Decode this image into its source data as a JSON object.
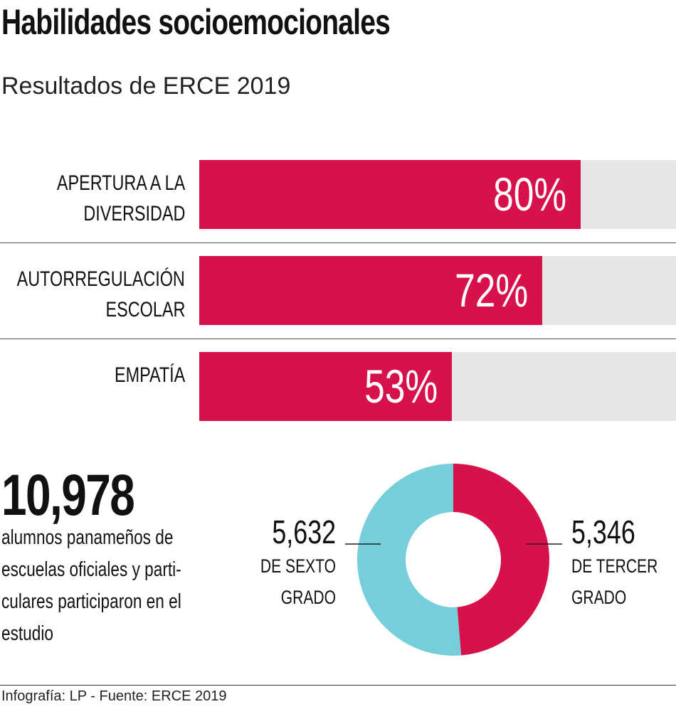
{
  "title": "Habilidades socioemocionales",
  "subtitle": "Resultados de ERCE 2019",
  "colors": {
    "accent": "#d7124a",
    "secondary": "#76cedb",
    "track": "#e6e6e6"
  },
  "chart_data": [
    {
      "type": "bar",
      "orientation": "horizontal",
      "categories": [
        [
          "APERTURA A LA",
          "DIVERSIDAD"
        ],
        [
          "AUTORREGULACIÓN",
          "ESCOLAR"
        ],
        [
          "EMPATÍA"
        ]
      ],
      "values": [
        80,
        72,
        53
      ],
      "value_labels": [
        "80%",
        "72%",
        "53%"
      ],
      "xlim": [
        0,
        100
      ]
    },
    {
      "type": "pie",
      "donut": true,
      "total_label": "10,978",
      "total_description": "alumnos panameños de escuelas oficiales y parti- culares participaron en el estudio",
      "slices": [
        {
          "value": 5346,
          "label": "5,346",
          "desc": [
            "DE TERCER",
            "GRADO"
          ],
          "color": "#d7124a"
        },
        {
          "value": 5632,
          "label": "5,632",
          "desc": [
            "DE SEXTO",
            "GRADO"
          ],
          "color": "#76cedb"
        }
      ]
    }
  ],
  "desc_lines": [
    "alumnos panameños de",
    "escuelas oficiales y parti-",
    "culares participaron en el",
    "estudio"
  ],
  "footer": "Infografía: LP - Fuente: ERCE 2019"
}
